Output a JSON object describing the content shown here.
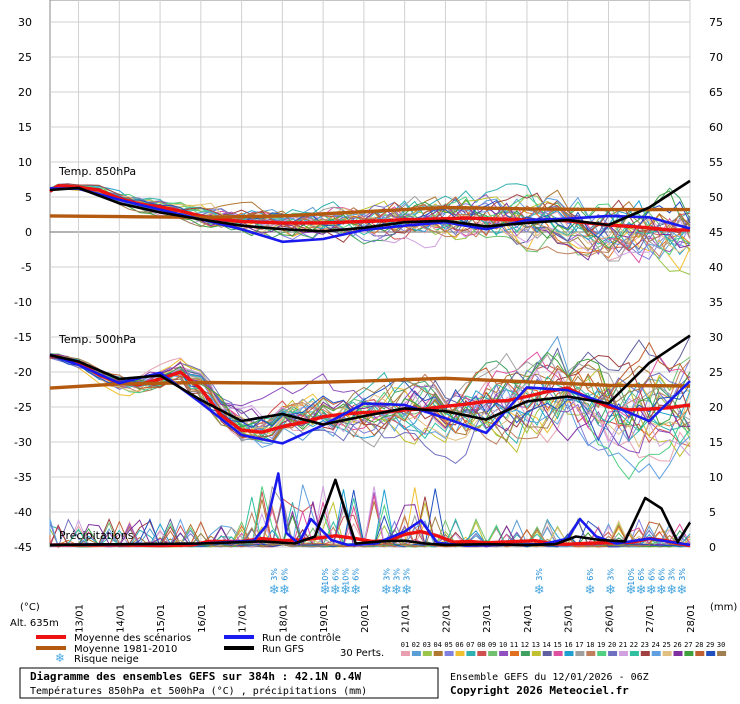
{
  "chart_data": {
    "type": "line",
    "left_axis": {
      "unit": "(°C)",
      "ylim": [
        -45,
        30
      ],
      "ticks": [
        30,
        25,
        20,
        15,
        10,
        5,
        0,
        -5,
        -10,
        -15,
        -20,
        -25,
        -30,
        -35,
        -40,
        -45
      ]
    },
    "right_axis": {
      "unit": "(mm)",
      "ylim": [
        0,
        75
      ],
      "ticks": [
        75,
        70,
        65,
        60,
        55,
        50,
        45,
        40,
        35,
        30,
        25,
        20,
        15,
        10,
        5,
        0
      ]
    },
    "x_ticks": [
      "13/01",
      "14/01",
      "15/01",
      "16/01",
      "17/01",
      "18/01",
      "19/01",
      "20/01",
      "21/01",
      "22/01",
      "23/01",
      "24/01",
      "25/01",
      "26/01",
      "27/01",
      "28/01"
    ],
    "altitude_label": "Alt. 635m",
    "section_labels": {
      "t850": "Temp. 850hPa",
      "t500": "Temp. 500hPa",
      "precip": "Précipitations"
    },
    "snow_risk_markers": [
      {
        "day": 17.8,
        "labels": [
          "3%"
        ]
      },
      {
        "day": 18.05,
        "labels": [
          "6%"
        ]
      },
      {
        "day": 19.05,
        "labels": [
          "10%"
        ]
      },
      {
        "day": 19.3,
        "labels": [
          "6%"
        ]
      },
      {
        "day": 19.55,
        "labels": [
          "10%"
        ]
      },
      {
        "day": 19.8,
        "labels": [
          "6%"
        ]
      },
      {
        "day": 20.55,
        "labels": [
          "3%"
        ]
      },
      {
        "day": 20.8,
        "labels": [
          "3%"
        ]
      },
      {
        "day": 21.05,
        "labels": [
          "3%"
        ]
      },
      {
        "day": 24.3,
        "labels": [
          "3%"
        ]
      },
      {
        "day": 25.55,
        "labels": [
          "6%"
        ]
      },
      {
        "day": 26.05,
        "labels": [
          "3%"
        ]
      },
      {
        "day": 26.55,
        "labels": [
          "10%"
        ]
      },
      {
        "day": 26.8,
        "labels": [
          "6%"
        ]
      },
      {
        "day": 27.05,
        "labels": [
          "6%"
        ]
      },
      {
        "day": 27.3,
        "labels": [
          "6%"
        ]
      },
      {
        "day": 27.55,
        "labels": [
          "3%"
        ]
      },
      {
        "day": 27.8,
        "labels": [
          "3%"
        ]
      }
    ],
    "series": [
      {
        "name": "Moyenne des scénarios",
        "color": "#ee1111",
        "t850": {
          "x": [
            12.0,
            12.5,
            13.0,
            13.5,
            14.0,
            14.5,
            15.0,
            15.5,
            16.0,
            16.5,
            17.0,
            17.5,
            18.0,
            18.5,
            19.0,
            19.5,
            20.0,
            20.5,
            21.0,
            21.5,
            22.0,
            22.5,
            23.0,
            23.5,
            24.0,
            24.5,
            25.0,
            25.5,
            26.0,
            26.5,
            27.0,
            27.5,
            28.0
          ],
          "y": [
            5.8,
            6.6,
            6.4,
            6.0,
            4.8,
            4.0,
            3.6,
            3.0,
            2.3,
            1.8,
            1.5,
            1.4,
            1.3,
            1.3,
            1.3,
            1.4,
            1.5,
            1.6,
            1.8,
            1.8,
            1.9,
            2.0,
            1.9,
            1.8,
            1.7,
            1.7,
            1.6,
            1.3,
            1.0,
            0.8,
            0.6,
            0.3,
            0.3
          ]
        },
        "t500": {
          "x": [
            12.0,
            12.5,
            13.0,
            13.5,
            14.0,
            14.5,
            15.0,
            15.5,
            16.0,
            16.5,
            17.0,
            17.5,
            18.0,
            18.5,
            19.0,
            19.5,
            20.0,
            20.5,
            21.0,
            21.5,
            22.0,
            22.5,
            23.0,
            23.5,
            24.0,
            24.5,
            25.0,
            25.5,
            26.0,
            26.5,
            27.0,
            27.5,
            28.0
          ],
          "y": [
            -17.6,
            -17.9,
            -18.7,
            -20.4,
            -21.6,
            -21.8,
            -21.0,
            -20.0,
            -22.4,
            -26.2,
            -28.3,
            -28.6,
            -27.8,
            -27.2,
            -26.4,
            -26.0,
            -25.8,
            -25.7,
            -25.4,
            -25.3,
            -24.9,
            -24.6,
            -24.2,
            -24.1,
            -23.5,
            -22.8,
            -22.3,
            -23.7,
            -25.0,
            -25.4,
            -25.3,
            -25.1,
            -24.7
          ]
        },
        "precip": {
          "x": [
            12.3,
            13.0,
            14.0,
            15.0,
            15.8,
            16.2,
            16.6,
            17.0,
            17.5,
            18.0,
            18.4,
            18.9,
            19.3,
            19.8,
            20.2,
            20.6,
            21.0,
            21.4,
            21.8,
            22.2,
            22.6,
            23.0,
            23.4,
            23.8,
            24.2,
            24.6,
            25.0,
            25.4,
            25.8,
            26.2,
            26.6,
            27.0,
            27.4,
            27.8,
            28.0
          ],
          "y": [
            0.3,
            0.3,
            0.3,
            0.2,
            0.3,
            0.8,
            0.8,
            0.8,
            1.2,
            0.9,
            1.0,
            1.3,
            1.6,
            1.2,
            0.8,
            0.9,
            1.8,
            2.2,
            1.6,
            0.7,
            0.8,
            0.6,
            0.7,
            0.8,
            0.9,
            0.5,
            0.4,
            0.5,
            0.6,
            0.6,
            0.7,
            1.2,
            0.9,
            0.4,
            0.2
          ]
        }
      },
      {
        "name": "Moyenne 1981-2010",
        "color": "#b35a10",
        "t850": {
          "x": [
            12.0,
            14.0,
            16.0,
            18.0,
            20.0,
            22.0,
            24.0,
            26.0,
            28.0
          ],
          "y": [
            2.3,
            2.2,
            2.1,
            2.3,
            2.9,
            3.5,
            3.3,
            3.2,
            3.2
          ]
        },
        "t500": {
          "x": [
            12.0,
            14.0,
            16.0,
            18.0,
            20.0,
            22.0,
            24.0,
            26.0,
            28.0
          ],
          "y": [
            -22.3,
            -21.7,
            -21.5,
            -21.6,
            -21.3,
            -20.9,
            -21.4,
            -21.9,
            -22.0
          ]
        }
      },
      {
        "name": "Run de contrôle",
        "color": "#1a1aee",
        "t850": {
          "x": [
            12.0,
            13.0,
            14.0,
            15.0,
            16.0,
            17.0,
            18.0,
            19.0,
            20.0,
            21.0,
            22.0,
            23.0,
            24.0,
            25.0,
            26.0,
            27.0,
            28.0
          ],
          "y": [
            6.2,
            6.2,
            4.6,
            3.2,
            1.8,
            0.4,
            -1.4,
            -1.0,
            0.3,
            0.9,
            1.4,
            0.4,
            1.7,
            1.9,
            2.3,
            2.1,
            0.5
          ]
        },
        "t500": {
          "x": [
            12.0,
            13.0,
            14.0,
            15.0,
            16.0,
            17.0,
            18.0,
            19.0,
            20.0,
            21.0,
            22.0,
            23.0,
            24.0,
            25.0,
            26.0,
            27.0,
            28.0
          ],
          "y": [
            -17.5,
            -19.0,
            -21.6,
            -20.1,
            -24.4,
            -29.0,
            -30.2,
            -27.6,
            -24.5,
            -24.7,
            -26.6,
            -28.7,
            -22.2,
            -22.6,
            -24.6,
            -27.0,
            -21.3
          ]
        },
        "precip": {
          "x": [
            12.3,
            16.0,
            17.3,
            17.6,
            17.9,
            18.1,
            18.4,
            18.7,
            19.2,
            19.6,
            20.3,
            21.0,
            21.4,
            21.8,
            22.5,
            23.3,
            24.4,
            25.0,
            25.3,
            25.7,
            26.2,
            27.0,
            28.0
          ],
          "y": [
            0.3,
            0.5,
            0.9,
            3.0,
            10.5,
            2.0,
            0.5,
            4.0,
            1.0,
            0.3,
            0.5,
            2.2,
            3.8,
            0.6,
            0.2,
            0.3,
            0.4,
            1.2,
            4.0,
            1.5,
            0.5,
            1.2,
            0.3
          ]
        }
      },
      {
        "name": "Run GFS",
        "color": "#000000",
        "t850": {
          "x": [
            12.0,
            13.0,
            14.0,
            15.0,
            16.0,
            17.0,
            18.0,
            19.0,
            20.0,
            21.0,
            22.0,
            23.0,
            24.0,
            25.0,
            26.0,
            27.0,
            28.0
          ],
          "y": [
            6.0,
            6.3,
            4.1,
            2.8,
            1.8,
            0.9,
            0.4,
            0.1,
            0.6,
            1.4,
            1.6,
            0.8,
            1.3,
            1.7,
            1.0,
            3.5,
            7.3
          ]
        },
        "t500": {
          "x": [
            12.0,
            13.0,
            14.0,
            15.0,
            16.0,
            17.0,
            18.0,
            19.0,
            20.0,
            21.0,
            22.0,
            23.0,
            24.0,
            25.0,
            26.0,
            27.0,
            28.0
          ],
          "y": [
            -17.6,
            -18.5,
            -21.0,
            -20.5,
            -24.0,
            -27.0,
            -26.0,
            -27.5,
            -26.3,
            -25.2,
            -25.6,
            -26.8,
            -24.2,
            -23.5,
            -24.5,
            -18.7,
            -14.8
          ]
        },
        "precip": {
          "x": [
            12.3,
            16.0,
            17.5,
            18.3,
            18.8,
            19.3,
            19.8,
            20.4,
            21.0,
            21.5,
            22.0,
            23.0,
            24.0,
            24.7,
            25.2,
            25.8,
            26.4,
            26.9,
            27.3,
            27.7,
            28.0
          ],
          "y": [
            0.3,
            0.5,
            0.8,
            0.5,
            1.5,
            9.6,
            0.5,
            0.8,
            0.9,
            0.5,
            0.3,
            0.4,
            0.3,
            0.4,
            1.5,
            1.0,
            0.8,
            7.0,
            5.5,
            0.7,
            3.5
          ]
        }
      }
    ],
    "legend_extra": {
      "snow_label": "Risque neige",
      "perts_label": "30 Perts."
    },
    "ensemble_members": [
      "01",
      "02",
      "03",
      "04",
      "05",
      "06",
      "07",
      "08",
      "09",
      "10",
      "11",
      "12",
      "13",
      "14",
      "15",
      "16",
      "17",
      "18",
      "19",
      "20",
      "21",
      "22",
      "23",
      "24",
      "25",
      "26",
      "27",
      "28",
      "29",
      "30"
    ],
    "member_colors": [
      "#e8a0b0",
      "#5a9ed6",
      "#9ac44a",
      "#b07830",
      "#8080e0",
      "#f0c030",
      "#30b0b0",
      "#d05050",
      "#70c070",
      "#9050c0",
      "#e07020",
      "#40a060",
      "#c0c030",
      "#6060a0",
      "#e050a0",
      "#20a0d0",
      "#a0a0a0",
      "#c08060",
      "#50d080",
      "#7070c0",
      "#d0a0e0",
      "#30c0a0",
      "#a04040",
      "#60a0e0",
      "#e0c080",
      "#8030a0",
      "#40a040",
      "#c06030",
      "#2050c0",
      "#a08050"
    ]
  },
  "footer": {
    "title_line1": "Diagramme des ensembles GEFS sur 384h : 42.1N 0.4W",
    "title_line2": "Températures 850hPa et 500hPa (°C) , précipitations (mm)",
    "run_info": "Ensemble GEFS du 12/01/2026 - 06Z",
    "copyright": "Copyright 2026 Meteociel.fr"
  }
}
